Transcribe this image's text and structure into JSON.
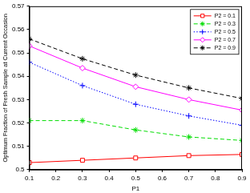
{
  "chart_data": {
    "type": "line",
    "x_label": "P1",
    "y_label": "Optimum Fraction of Fresh Sample at Current Occasion",
    "x": [
      0.1,
      0.3,
      0.5,
      0.7,
      0.9
    ],
    "series": [
      {
        "name": "P2 = 0.1",
        "color": "#ff0000",
        "marker": "square",
        "line_style": "solid",
        "values": [
          0.503,
          0.504,
          0.505,
          0.506,
          0.5065
        ]
      },
      {
        "name": "P2 = 0.3",
        "color": "#00dd00",
        "marker": "asterisk",
        "line_style": "dashed",
        "values": [
          0.521,
          0.521,
          0.517,
          0.514,
          0.5125
        ]
      },
      {
        "name": "P2 = 0.5",
        "color": "#0000ff",
        "marker": "plus",
        "line_style": "dotted",
        "values": [
          0.546,
          0.536,
          0.528,
          0.523,
          0.519
        ]
      },
      {
        "name": "P2 = 0.7",
        "color": "#ff00ff",
        "marker": "diamond",
        "line_style": "solid",
        "values": [
          0.553,
          0.5435,
          0.5355,
          0.53,
          0.5255
        ]
      },
      {
        "name": "P2 = 0.9",
        "color": "#000000",
        "marker": "asterisk",
        "line_style": "dashed",
        "values": [
          0.556,
          0.5475,
          0.5405,
          0.535,
          0.5305
        ]
      }
    ],
    "xlim": [
      0.1,
      0.9
    ],
    "xticks": [
      0.1,
      0.2,
      0.3,
      0.4,
      0.5,
      0.6,
      0.7,
      0.8,
      0.9
    ],
    "ylim": [
      0.5,
      0.57
    ],
    "yticks": [
      0.5,
      0.51,
      0.52,
      0.53,
      0.54,
      0.55,
      0.56,
      0.57
    ],
    "grid": false,
    "legend": "upper right"
  }
}
